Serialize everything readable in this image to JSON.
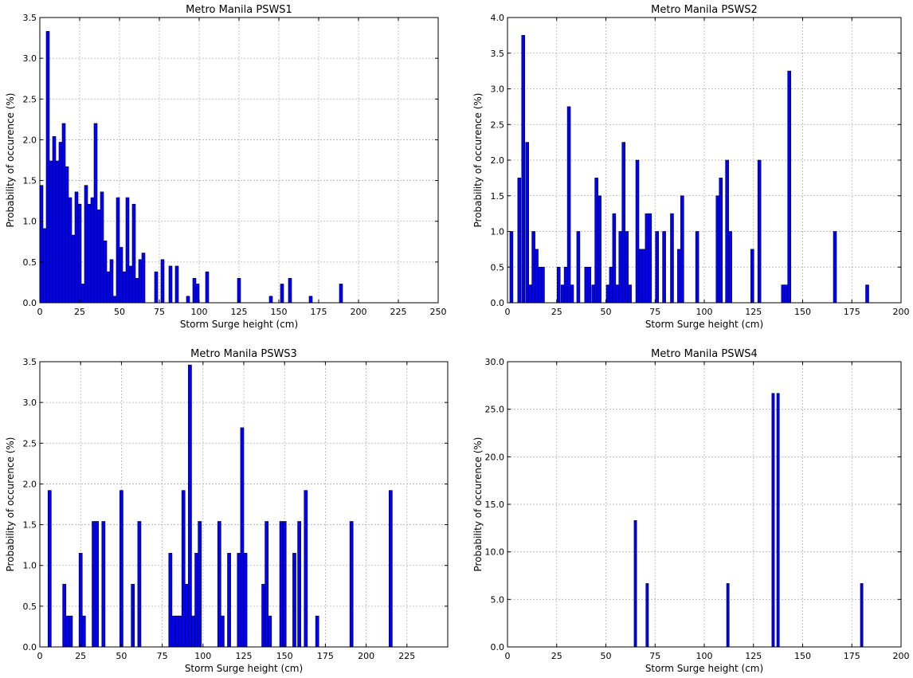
{
  "chart_data": [
    {
      "type": "bar",
      "title": "Metro Manila PSWS1",
      "xlabel": "Storm Surge height (cm)",
      "ylabel": "Probability of occurence (%)",
      "xlim": [
        0,
        250
      ],
      "ylim": [
        0,
        3.5
      ],
      "xticks": [
        0,
        25,
        50,
        75,
        100,
        125,
        150,
        175,
        200,
        225,
        250
      ],
      "xtick_labels": [
        "0",
        "25",
        "50",
        "75",
        "100",
        "125",
        "150",
        "175",
        "200",
        "225",
        "250"
      ],
      "yticks": [
        0,
        0.5,
        1,
        1.5,
        2,
        2.5,
        3,
        3.5
      ],
      "ytick_labels": [
        "0.0",
        "0.5",
        "1.0",
        "1.5",
        "2.0",
        "2.5",
        "3.0",
        "3.5"
      ],
      "grid": true,
      "bar_width": 2,
      "bar_color": "#0000ff",
      "bars": [
        [
          1,
          1.44
        ],
        [
          3,
          0.91
        ],
        [
          5,
          3.33
        ],
        [
          7,
          1.74
        ],
        [
          9,
          2.04
        ],
        [
          11,
          1.74
        ],
        [
          13,
          1.97
        ],
        [
          15,
          2.2
        ],
        [
          17,
          1.67
        ],
        [
          19,
          1.29
        ],
        [
          21,
          0.83
        ],
        [
          23,
          1.36
        ],
        [
          25,
          1.21
        ],
        [
          27,
          0.23
        ],
        [
          29,
          1.44
        ],
        [
          31,
          1.21
        ],
        [
          33,
          1.29
        ],
        [
          35,
          2.2
        ],
        [
          37,
          1.14
        ],
        [
          39,
          1.36
        ],
        [
          41,
          0.76
        ],
        [
          43,
          0.38
        ],
        [
          45,
          0.53
        ],
        [
          47,
          0.08
        ],
        [
          49,
          1.29
        ],
        [
          51,
          0.68
        ],
        [
          53,
          0.38
        ],
        [
          55,
          1.29
        ],
        [
          57,
          0.45
        ],
        [
          59,
          1.21
        ],
        [
          61,
          0.3
        ],
        [
          63,
          0.53
        ],
        [
          65,
          0.61
        ],
        [
          73,
          0.38
        ],
        [
          77,
          0.53
        ],
        [
          82,
          0.45
        ],
        [
          86,
          0.45
        ],
        [
          93,
          0.08
        ],
        [
          97,
          0.3
        ],
        [
          99,
          0.23
        ],
        [
          105,
          0.38
        ],
        [
          125,
          0.3
        ],
        [
          145,
          0.08
        ],
        [
          152,
          0.23
        ],
        [
          157,
          0.3
        ],
        [
          170,
          0.08
        ],
        [
          189,
          0.23
        ]
      ]
    },
    {
      "type": "bar",
      "title": "Metro Manila PSWS2",
      "xlabel": "Storm Surge height (cm)",
      "ylabel": "Probability of occurence (%)",
      "xlim": [
        0,
        200
      ],
      "ylim": [
        0,
        4.0
      ],
      "xticks": [
        0,
        25,
        50,
        75,
        100,
        125,
        150,
        175,
        200
      ],
      "xtick_labels": [
        "0",
        "25",
        "50",
        "75",
        "100",
        "125",
        "150",
        "175",
        "200"
      ],
      "yticks": [
        0,
        0.5,
        1,
        1.5,
        2,
        2.5,
        3,
        3.5,
        4
      ],
      "ytick_labels": [
        "0.0",
        "0.5",
        "1.0",
        "1.5",
        "2.0",
        "2.5",
        "3.0",
        "3.5",
        "4.0"
      ],
      "grid": true,
      "bar_width": 1.6,
      "bar_color": "#0000ff",
      "bars": [
        [
          2,
          1.0
        ],
        [
          6,
          1.75
        ],
        [
          8,
          3.75
        ],
        [
          10,
          2.25
        ],
        [
          11.6,
          0.25
        ],
        [
          13.2,
          1.0
        ],
        [
          14.8,
          0.75
        ],
        [
          16.4,
          0.5
        ],
        [
          18,
          0.5
        ],
        [
          26,
          0.5
        ],
        [
          28,
          0.25
        ],
        [
          29.6,
          0.5
        ],
        [
          31.2,
          2.75
        ],
        [
          32.8,
          0.25
        ],
        [
          36,
          1.0
        ],
        [
          40,
          0.5
        ],
        [
          41.6,
          0.5
        ],
        [
          43.6,
          0.25
        ],
        [
          45.2,
          1.75
        ],
        [
          46.8,
          1.5
        ],
        [
          51,
          0.25
        ],
        [
          52.6,
          0.5
        ],
        [
          54.2,
          1.25
        ],
        [
          55.8,
          0.25
        ],
        [
          57.4,
          1.0
        ],
        [
          59,
          2.25
        ],
        [
          60.6,
          1.0
        ],
        [
          62.2,
          0.25
        ],
        [
          66,
          2.0
        ],
        [
          67.6,
          0.75
        ],
        [
          69.2,
          0.75
        ],
        [
          70.8,
          1.25
        ],
        [
          72.4,
          1.25
        ],
        [
          76,
          1.0
        ],
        [
          79.6,
          1.0
        ],
        [
          83.6,
          1.25
        ],
        [
          87.2,
          0.75
        ],
        [
          88.8,
          1.5
        ],
        [
          96.4,
          1.0
        ],
        [
          106.8,
          1.5
        ],
        [
          108.4,
          1.75
        ],
        [
          111.6,
          2.0
        ],
        [
          113.2,
          1.0
        ],
        [
          124.4,
          0.75
        ],
        [
          128,
          2.0
        ],
        [
          140,
          0.25
        ],
        [
          141.6,
          0.25
        ],
        [
          143.2,
          3.25
        ],
        [
          166.4,
          1.0
        ],
        [
          182.8,
          0.25
        ]
      ]
    },
    {
      "type": "bar",
      "title": "Metro Manila PSWS3",
      "xlabel": "Storm Surge height (cm)",
      "ylabel": "Probability of occurence (%)",
      "xlim": [
        0,
        250
      ],
      "ylim": [
        0,
        3.5
      ],
      "xticks": [
        0,
        25,
        50,
        75,
        100,
        125,
        150,
        175,
        200,
        225
      ],
      "xtick_labels": [
        "0",
        "25",
        "50",
        "75",
        "100",
        "125",
        "150",
        "175",
        "200",
        "225"
      ],
      "yticks": [
        0,
        0.5,
        1,
        1.5,
        2,
        2.5,
        3,
        3.5
      ],
      "ytick_labels": [
        "0.0",
        "0.5",
        "1.0",
        "1.5",
        "2.0",
        "2.5",
        "3.0",
        "3.5"
      ],
      "grid": true,
      "bar_width": 2,
      "bar_color": "#0000ff",
      "bars": [
        [
          6,
          1.92
        ],
        [
          15,
          0.77
        ],
        [
          17,
          0.38
        ],
        [
          19,
          0.38
        ],
        [
          25,
          1.15
        ],
        [
          27,
          0.38
        ],
        [
          33,
          1.54
        ],
        [
          35,
          1.54
        ],
        [
          39,
          1.54
        ],
        [
          50,
          1.92
        ],
        [
          57,
          0.77
        ],
        [
          61,
          1.54
        ],
        [
          80,
          1.15
        ],
        [
          82,
          0.38
        ],
        [
          84,
          0.38
        ],
        [
          86,
          0.38
        ],
        [
          88,
          1.92
        ],
        [
          90,
          0.77
        ],
        [
          92,
          3.46
        ],
        [
          94,
          0.38
        ],
        [
          96,
          1.15
        ],
        [
          98,
          1.54
        ],
        [
          110,
          1.54
        ],
        [
          112,
          0.38
        ],
        [
          116,
          1.15
        ],
        [
          122,
          1.15
        ],
        [
          124,
          2.69
        ],
        [
          126,
          1.15
        ],
        [
          137,
          0.77
        ],
        [
          139,
          1.54
        ],
        [
          141,
          0.38
        ],
        [
          148,
          1.54
        ],
        [
          150,
          1.54
        ],
        [
          156,
          1.15
        ],
        [
          159,
          1.54
        ],
        [
          163,
          1.92
        ],
        [
          170,
          0.38
        ],
        [
          191,
          1.54
        ],
        [
          215,
          1.92
        ]
      ]
    },
    {
      "type": "bar",
      "title": "Metro Manila PSWS4",
      "xlabel": "Storm Surge height (cm)",
      "ylabel": "Probability of occurence (%)",
      "xlim": [
        0,
        200
      ],
      "ylim": [
        0,
        30.0
      ],
      "xticks": [
        0,
        25,
        50,
        75,
        100,
        125,
        150,
        175,
        200
      ],
      "xtick_labels": [
        "0",
        "25",
        "50",
        "75",
        "100",
        "125",
        "150",
        "175",
        "200"
      ],
      "yticks": [
        0,
        5,
        10,
        15,
        20,
        25,
        30
      ],
      "ytick_labels": [
        "0.0",
        "5.0",
        "10.0",
        "15.0",
        "20.0",
        "25.0",
        "30.0"
      ],
      "grid": true,
      "bar_width": 1.3,
      "bar_color": "#0000ff",
      "bars": [
        [
          65,
          13.3
        ],
        [
          71,
          6.67
        ],
        [
          112,
          6.67
        ],
        [
          135,
          26.67
        ],
        [
          137.5,
          26.67
        ],
        [
          180,
          6.67
        ]
      ]
    }
  ]
}
